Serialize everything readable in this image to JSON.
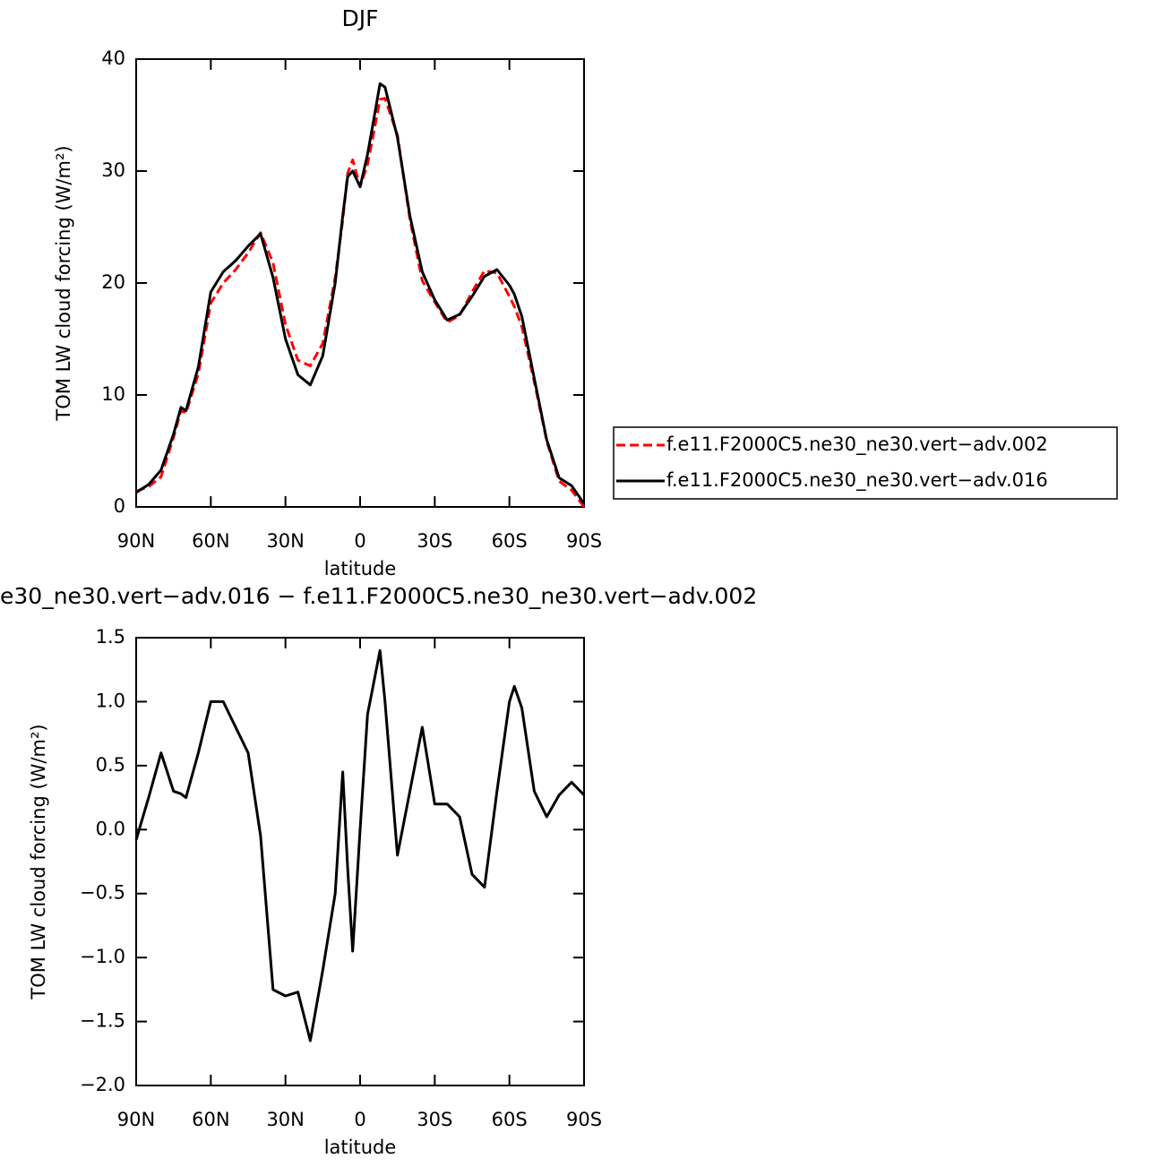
{
  "chart_data": [
    {
      "type": "line",
      "title": "DJF",
      "xlabel": "latitude",
      "ylabel": "TOM LW cloud forcing (W/m²)",
      "x": [
        90,
        85,
        80,
        75,
        72,
        70,
        65,
        60,
        55,
        50,
        45,
        40,
        35,
        30,
        25,
        20,
        15,
        10,
        7,
        5,
        3,
        0,
        -3,
        -5,
        -8,
        -10,
        -15,
        -20,
        -25,
        -30,
        -35,
        -40,
        -45,
        -50,
        -55,
        -60,
        -62,
        -65,
        -70,
        -75,
        -80,
        -85,
        -90
      ],
      "xlim": [
        90,
        -90
      ],
      "xticks": [
        {
          "value": 90,
          "label": "90N"
        },
        {
          "value": 60,
          "label": "60N"
        },
        {
          "value": 30,
          "label": "30N"
        },
        0,
        {
          "value": -30,
          "label": "30S"
        },
        {
          "value": -60,
          "label": "60S"
        },
        {
          "value": -90,
          "label": "90S"
        }
      ],
      "ylim": [
        0,
        40
      ],
      "yticks": [
        0,
        10,
        20,
        30,
        40
      ],
      "legend": "right",
      "series": [
        {
          "name": "f.e11.F2000C5.ne30_ne30.vert−adv.002",
          "color": "#ff0000",
          "dash": true,
          "values": [
            1.4,
            1.8,
            2.7,
            6.2,
            8.6,
            8.4,
            11.9,
            18.2,
            20.0,
            21.2,
            22.7,
            24.5,
            21.8,
            16.3,
            13.1,
            12.6,
            14.6,
            20.5,
            25.6,
            29.8,
            31.0,
            28.6,
            30.6,
            32.9,
            36.4,
            36.5,
            33.2,
            25.7,
            20.2,
            18.3,
            16.5,
            17.1,
            19.2,
            21.1,
            20.9,
            18.8,
            17.9,
            16.1,
            11.2,
            5.9,
            2.3,
            1.5,
            0.0
          ]
        },
        {
          "name": "f.e11.F2000C5.ne30_ne30.vert−adv.016",
          "color": "#000000",
          "dash": false,
          "values": [
            1.3,
            2.0,
            3.3,
            6.5,
            8.9,
            8.6,
            12.5,
            19.2,
            21.0,
            22.0,
            23.3,
            24.4,
            20.5,
            15.0,
            11.8,
            10.9,
            13.5,
            20.0,
            26.0,
            29.5,
            30.0,
            28.6,
            31.5,
            34.0,
            37.8,
            37.5,
            33.0,
            26.0,
            21.0,
            18.5,
            16.7,
            17.2,
            18.8,
            20.6,
            21.2,
            19.8,
            19.0,
            17.0,
            11.5,
            6.0,
            2.6,
            1.9,
            0.3
          ]
        }
      ]
    },
    {
      "type": "line",
      "title": "e30_ne30.vert−adv.016 − f.e11.F2000C5.ne30_ne30.vert−adv.002",
      "xlabel": "latitude",
      "ylabel": "TOM LW cloud forcing (W/m²)",
      "x": [
        90,
        85,
        80,
        75,
        72,
        70,
        65,
        60,
        55,
        50,
        45,
        40,
        35,
        30,
        25,
        20,
        15,
        10,
        7,
        5,
        3,
        0,
        -3,
        -5,
        -8,
        -10,
        -15,
        -20,
        -25,
        -30,
        -35,
        -40,
        -45,
        -50,
        -55,
        -60,
        -62,
        -65,
        -70,
        -75,
        -80,
        -85,
        -90
      ],
      "xlim": [
        90,
        -90
      ],
      "xticks": [
        {
          "value": 90,
          "label": "90N"
        },
        {
          "value": 60,
          "label": "60N"
        },
        {
          "value": 30,
          "label": "30N"
        },
        0,
        {
          "value": -30,
          "label": "30S"
        },
        {
          "value": -60,
          "label": "60S"
        },
        {
          "value": -90,
          "label": "90S"
        }
      ],
      "ylim": [
        -2.0,
        1.5
      ],
      "yticks": [
        {
          "value": -2.0,
          "label": "−2.0"
        },
        {
          "value": -1.5,
          "label": "−1.5"
        },
        {
          "value": -1.0,
          "label": "−1.0"
        },
        {
          "value": -0.5,
          "label": "−0.5"
        },
        {
          "value": 0.0,
          "label": "0.0"
        },
        0.5,
        {
          "value": 1.0,
          "label": "1.0"
        },
        1.5
      ],
      "color": "#000000",
      "values": [
        -0.08,
        0.25,
        0.6,
        0.3,
        0.28,
        0.25,
        0.6,
        1.0,
        1.0,
        0.8,
        0.6,
        -0.05,
        -1.25,
        -1.3,
        -1.27,
        -1.65,
        -1.1,
        -0.5,
        0.45,
        -0.3,
        -0.95,
        0.0,
        0.9,
        1.1,
        1.4,
        1.0,
        -0.2,
        0.3,
        0.8,
        0.2,
        0.2,
        0.1,
        -0.35,
        -0.45,
        0.3,
        1.0,
        1.12,
        0.95,
        0.3,
        0.1,
        0.27,
        0.37,
        0.27
      ]
    }
  ]
}
